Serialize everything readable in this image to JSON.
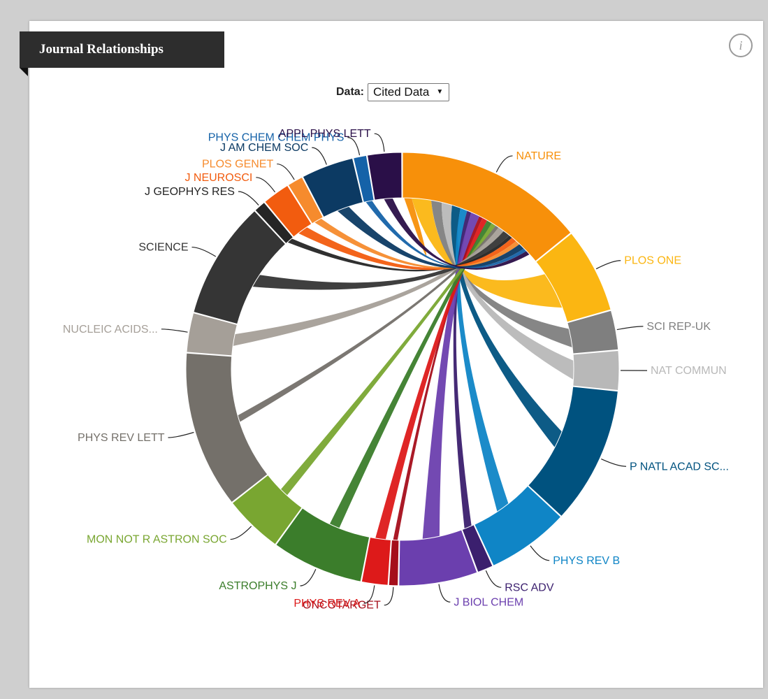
{
  "header": {
    "title": "Journal Relationships",
    "info_icon": "info-icon"
  },
  "controls": {
    "data_label": "Data:",
    "data_selected": "Cited Data"
  },
  "chart_data": {
    "type": "chord",
    "center": "NATURE",
    "journals": [
      {
        "name": "NATURE",
        "color": "#f7900a",
        "share": 0.145,
        "link": 0
      },
      {
        "name": "PLOS ONE",
        "color": "#fbb612",
        "share": 0.065,
        "link": 0.022
      },
      {
        "name": "SCI REP-UK",
        "color": "#7f7f7f",
        "share": 0.03,
        "link": 0.012
      },
      {
        "name": "NAT COMMUN",
        "color": "#b8b8b8",
        "share": 0.03,
        "link": 0.012
      },
      {
        "name": "P NATL ACAD SC...",
        "color": "#00527f",
        "share": 0.105,
        "link": 0.01
      },
      {
        "name": "PHYS REV B",
        "color": "#0f85c6",
        "share": 0.063,
        "link": 0.008
      },
      {
        "name": "RSC ADV",
        "color": "#3b1f6e",
        "share": 0.012,
        "link": 0.005
      },
      {
        "name": "J BIOL CHEM",
        "color": "#6b3fae",
        "share": 0.06,
        "link": 0.01
      },
      {
        "name": "ONCOTARGET",
        "color": "#a50e1b",
        "share": 0.007,
        "link": 0.004
      },
      {
        "name": "PHYS REV A",
        "color": "#dd1a1a",
        "share": 0.02,
        "link": 0.006
      },
      {
        "name": "ASTROPHYS J",
        "color": "#3b7d2b",
        "share": 0.07,
        "link": 0.006
      },
      {
        "name": "MON NOT R ASTRON SOC",
        "color": "#79a631",
        "share": 0.045,
        "link": 0.005
      },
      {
        "name": "PHYS REV LETT",
        "color": "#74706a",
        "share": 0.12,
        "link": 0.004
      },
      {
        "name": "NUCLEIC ACIDS...",
        "color": "#a59f98",
        "share": 0.03,
        "link": 0.007
      },
      {
        "name": "SCIENCE",
        "color": "#353535",
        "share": 0.09,
        "link": 0.008
      },
      {
        "name": "J GEOPHYS RES",
        "color": "#252525",
        "share": 0.009,
        "link": 0.004
      },
      {
        "name": "J NEUROSCI",
        "color": "#f25c0f",
        "share": 0.021,
        "link": 0.006
      },
      {
        "name": "PLOS GENET",
        "color": "#f68b2d",
        "share": 0.012,
        "link": 0.005
      },
      {
        "name": "J AM CHEM SOC",
        "color": "#0c3a63",
        "share": 0.04,
        "link": 0.007
      },
      {
        "name": "PHYS CHEM CHEM PHYS",
        "color": "#1562a8",
        "share": 0.01,
        "link": 0.004
      },
      {
        "name": "APPL PHYS LETT",
        "color": "#2a0f48",
        "share": 0.026,
        "link": 0.005
      }
    ]
  }
}
